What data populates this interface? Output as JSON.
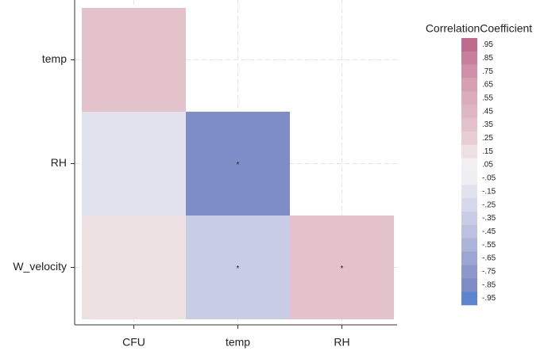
{
  "chart_data": {
    "type": "heatmap",
    "x_categories": [
      "CFU",
      "temp",
      "RH"
    ],
    "y_categories": [
      "temp",
      "RH",
      "W_velocity"
    ],
    "values": [
      [
        0.3,
        null,
        null
      ],
      [
        -0.15,
        -0.8,
        null
      ],
      [
        0.1,
        -0.35,
        0.35
      ]
    ],
    "annotations": [
      [
        null,
        null,
        null
      ],
      [
        null,
        "*",
        null
      ],
      [
        null,
        "*",
        "*"
      ]
    ],
    "grid": true,
    "legend": {
      "title": "CorrelationCoefficient",
      "ticks": [
        {
          "value": 0.95,
          "label": ".95"
        },
        {
          "value": 0.85,
          "label": ".85"
        },
        {
          "value": 0.75,
          "label": ".75"
        },
        {
          "value": 0.65,
          "label": ".65"
        },
        {
          "value": 0.55,
          "label": ".55"
        },
        {
          "value": 0.45,
          "label": ".45"
        },
        {
          "value": 0.35,
          "label": ".35"
        },
        {
          "value": 0.25,
          "label": ".25"
        },
        {
          "value": 0.15,
          "label": ".15"
        },
        {
          "value": 0.05,
          "label": ".05"
        },
        {
          "value": -0.05,
          "label": "-.05"
        },
        {
          "value": -0.15,
          "label": "-.15"
        },
        {
          "value": -0.25,
          "label": "-.25"
        },
        {
          "value": -0.35,
          "label": "-.35"
        },
        {
          "value": -0.45,
          "label": "-.45"
        },
        {
          "value": -0.55,
          "label": "-.55"
        },
        {
          "value": -0.65,
          "label": "-.65"
        },
        {
          "value": -0.75,
          "label": "-.75"
        },
        {
          "value": -0.85,
          "label": "-.85"
        },
        {
          "value": -0.95,
          "label": "-.95"
        }
      ],
      "colors": [
        "#c06a8e",
        "#c97f9c",
        "#d091a8",
        "#d6a0b3",
        "#dbacbc",
        "#dfb7c4",
        "#e3c2cc",
        "#e8cdd4",
        "#ede0e3",
        "#f2eff0",
        "#eeeef3",
        "#e0e3ee",
        "#d5d9eb",
        "#c8cce4",
        "#bcc1e0",
        "#adb4d9",
        "#9da6d2",
        "#8c98cc",
        "#7f8dc7",
        "#5d86cf"
      ]
    }
  }
}
